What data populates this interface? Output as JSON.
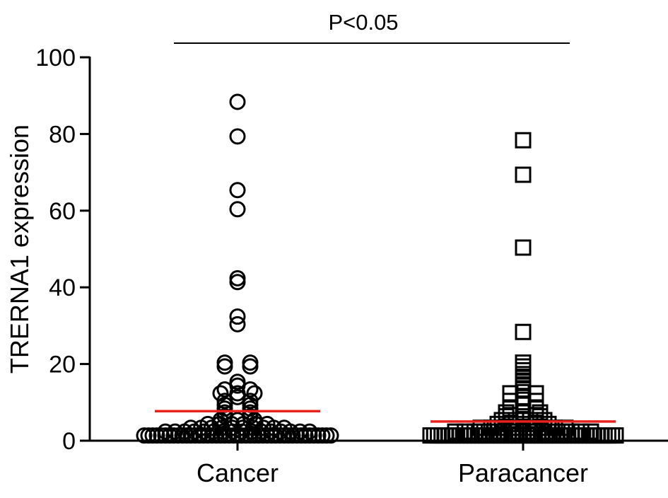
{
  "chart_data": {
    "type": "scatter",
    "title": "",
    "ylabel": "TRERNA1  expression",
    "xlabel": "",
    "ylim": [
      0,
      100
    ],
    "yticks": [
      0,
      20,
      40,
      60,
      80,
      100
    ],
    "categories": [
      "Cancer",
      "Paracancer"
    ],
    "significance": {
      "label": "P<0.05",
      "between": [
        "Cancer",
        "Paracancer"
      ]
    },
    "series": [
      {
        "category": "Cancer",
        "marker": "circle",
        "mean": 7.7,
        "values": [
          88,
          79,
          65,
          60,
          42,
          41,
          32,
          30,
          20,
          20,
          19,
          19,
          15,
          14,
          13,
          13,
          12,
          12,
          12,
          11,
          10,
          10,
          9,
          9,
          8,
          8,
          7,
          7,
          6,
          6,
          5,
          5,
          5,
          4,
          4,
          4,
          4,
          4,
          4,
          3,
          3,
          3,
          3,
          3,
          3,
          3,
          3,
          3,
          3,
          2,
          2,
          2,
          2,
          2,
          2,
          2,
          2,
          2,
          2,
          2,
          2,
          2,
          2,
          2,
          2,
          1,
          1,
          1,
          1,
          1,
          1,
          1,
          1,
          1,
          1,
          1,
          1,
          1,
          1,
          1,
          1,
          1,
          1,
          1,
          1,
          1,
          1,
          1,
          1,
          1,
          1,
          1,
          1,
          1,
          1,
          1,
          1,
          1,
          1,
          1,
          1,
          1,
          1,
          1,
          1,
          1,
          1,
          1,
          1,
          1
        ]
      },
      {
        "category": "Paracancer",
        "marker": "square",
        "mean": 5,
        "values": [
          78,
          69,
          50,
          28,
          20,
          19,
          18,
          17,
          16,
          15,
          14,
          13,
          12,
          12,
          11,
          10,
          10,
          9,
          8,
          8,
          7,
          7,
          7,
          6,
          6,
          6,
          5,
          5,
          5,
          5,
          4,
          4,
          4,
          4,
          4,
          3,
          3,
          3,
          3,
          3,
          3,
          3,
          3,
          3,
          2,
          2,
          2,
          2,
          2,
          2,
          2,
          2,
          2,
          2,
          2,
          2,
          2,
          2,
          2,
          1,
          1,
          1,
          1,
          1,
          1,
          1,
          1,
          1,
          1,
          1,
          1,
          1,
          1,
          1,
          1,
          1,
          1,
          1,
          1,
          1,
          1,
          1,
          1,
          1,
          1,
          1,
          1,
          1,
          1,
          1,
          1,
          1,
          1,
          1,
          1,
          1,
          1,
          1,
          1,
          1,
          1,
          1,
          1,
          1,
          1,
          1,
          1,
          1,
          1,
          1
        ]
      }
    ],
    "colors": {
      "mean_line": "#e8201e",
      "marker": "#000000",
      "axis": "#000000"
    },
    "grid": false,
    "legend": "none"
  }
}
